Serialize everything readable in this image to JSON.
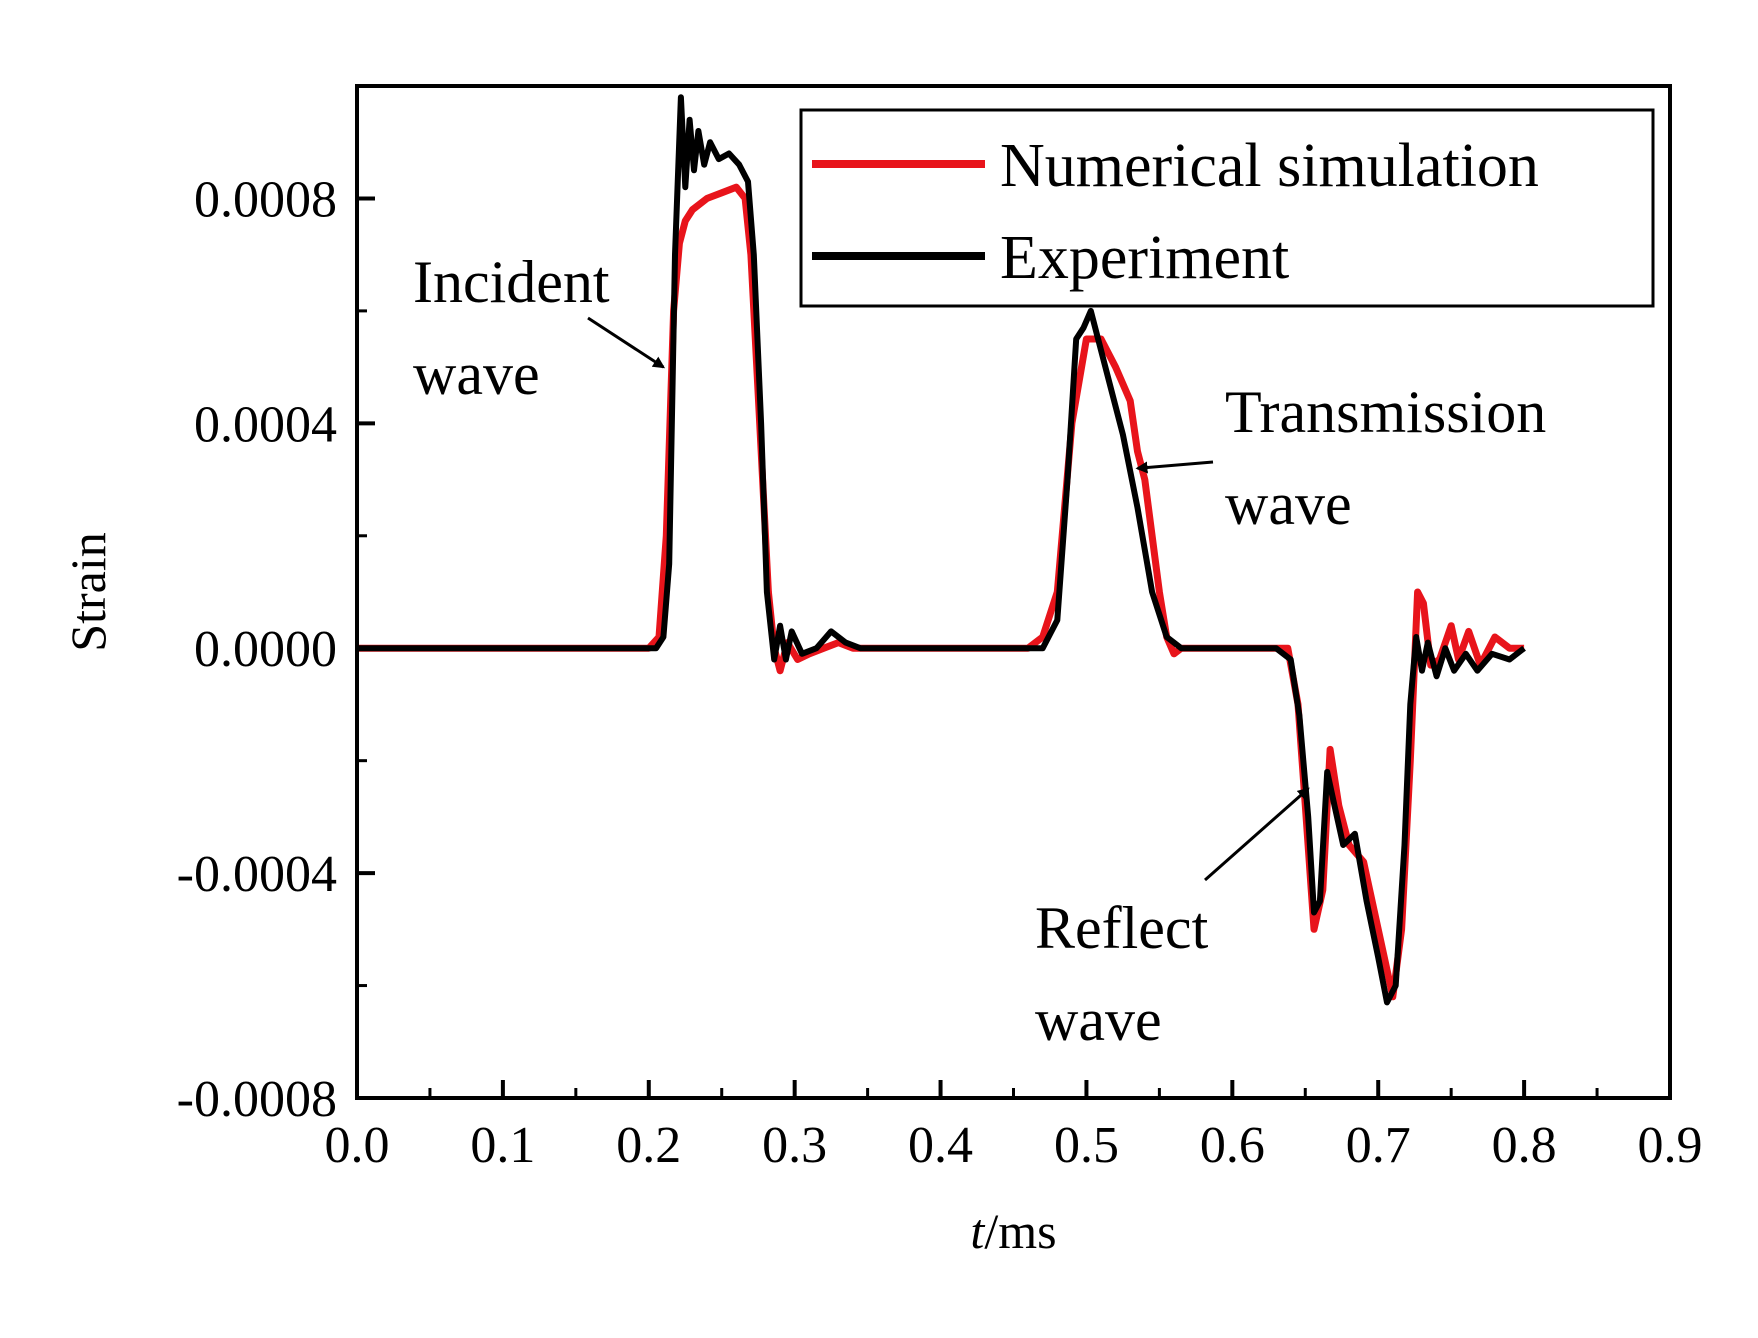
{
  "chart_data": {
    "type": "line",
    "xlabel": {
      "italic": "t",
      "rest": "/ms"
    },
    "ylabel": "Strain",
    "xlim": [
      0.0,
      0.9
    ],
    "ylim": [
      -0.0008,
      0.001
    ],
    "x_ticks": [
      0.0,
      0.1,
      0.2,
      0.3,
      0.4,
      0.5,
      0.6,
      0.7,
      0.8,
      0.9
    ],
    "x_tick_labels": [
      "0.0",
      "0.1",
      "0.2",
      "0.3",
      "0.4",
      "0.5",
      "0.6",
      "0.7",
      "0.8",
      "0.9"
    ],
    "y_ticks": [
      0.0008,
      0.0004,
      0.0,
      -0.0004,
      -0.0008
    ],
    "y_tick_labels": [
      "0.0008",
      "0.0004",
      "0.0000",
      "-0.0004",
      "-0.0008"
    ],
    "grid": false,
    "legend": {
      "placement": "top-right"
    },
    "series": [
      {
        "name": "Numerical simulation",
        "color": "#e8141b",
        "points": [
          [
            0.0,
            0.0
          ],
          [
            0.2,
            0.0
          ],
          [
            0.207,
            2e-05
          ],
          [
            0.212,
            0.0002
          ],
          [
            0.217,
            0.0006
          ],
          [
            0.221,
            0.00072
          ],
          [
            0.225,
            0.00076
          ],
          [
            0.23,
            0.00078
          ],
          [
            0.24,
            0.0008
          ],
          [
            0.25,
            0.00081
          ],
          [
            0.26,
            0.00082
          ],
          [
            0.266,
            0.0008
          ],
          [
            0.27,
            0.0007
          ],
          [
            0.276,
            0.0004
          ],
          [
            0.282,
            0.0001
          ],
          [
            0.286,
            0.0
          ],
          [
            0.29,
            -4e-05
          ],
          [
            0.295,
            1e-05
          ],
          [
            0.302,
            -2e-05
          ],
          [
            0.31,
            -1e-05
          ],
          [
            0.32,
            0.0
          ],
          [
            0.33,
            1e-05
          ],
          [
            0.34,
            0.0
          ],
          [
            0.35,
            0.0
          ],
          [
            0.46,
            0.0
          ],
          [
            0.47,
            2e-05
          ],
          [
            0.48,
            0.0001
          ],
          [
            0.49,
            0.0004
          ],
          [
            0.5,
            0.00055
          ],
          [
            0.51,
            0.00055
          ],
          [
            0.52,
            0.0005
          ],
          [
            0.53,
            0.00044
          ],
          [
            0.535,
            0.00035
          ],
          [
            0.54,
            0.0003
          ],
          [
            0.55,
            0.0001
          ],
          [
            0.555,
            2e-05
          ],
          [
            0.56,
            -1e-05
          ],
          [
            0.565,
            0.0
          ],
          [
            0.57,
            0.0
          ],
          [
            0.638,
            0.0
          ],
          [
            0.645,
            -0.0001
          ],
          [
            0.65,
            -0.00028
          ],
          [
            0.656,
            -0.0005
          ],
          [
            0.662,
            -0.00043
          ],
          [
            0.667,
            -0.00018
          ],
          [
            0.673,
            -0.00028
          ],
          [
            0.68,
            -0.00035
          ],
          [
            0.69,
            -0.00038
          ],
          [
            0.7,
            -0.0005
          ],
          [
            0.71,
            -0.00062
          ],
          [
            0.716,
            -0.0005
          ],
          [
            0.722,
            -0.0002
          ],
          [
            0.727,
            0.0001
          ],
          [
            0.731,
            8e-05
          ],
          [
            0.736,
            -3e-05
          ],
          [
            0.742,
            -2e-05
          ],
          [
            0.75,
            4e-05
          ],
          [
            0.755,
            -2e-05
          ],
          [
            0.762,
            3e-05
          ],
          [
            0.77,
            -3e-05
          ],
          [
            0.78,
            2e-05
          ],
          [
            0.79,
            0.0
          ],
          [
            0.8,
            0.0
          ]
        ]
      },
      {
        "name": "Experiment",
        "color": "#000000",
        "points": [
          [
            0.0,
            0.0
          ],
          [
            0.205,
            0.0
          ],
          [
            0.21,
            2e-05
          ],
          [
            0.214,
            0.00015
          ],
          [
            0.218,
            0.0007
          ],
          [
            0.222,
            0.00098
          ],
          [
            0.225,
            0.00082
          ],
          [
            0.228,
            0.00094
          ],
          [
            0.231,
            0.00085
          ],
          [
            0.234,
            0.00092
          ],
          [
            0.238,
            0.00086
          ],
          [
            0.242,
            0.0009
          ],
          [
            0.248,
            0.00087
          ],
          [
            0.255,
            0.00088
          ],
          [
            0.262,
            0.00086
          ],
          [
            0.268,
            0.00083
          ],
          [
            0.272,
            0.0007
          ],
          [
            0.277,
            0.0004
          ],
          [
            0.281,
            0.0001
          ],
          [
            0.286,
            -2e-05
          ],
          [
            0.29,
            4e-05
          ],
          [
            0.294,
            -2e-05
          ],
          [
            0.298,
            3e-05
          ],
          [
            0.305,
            -1e-05
          ],
          [
            0.315,
            0.0
          ],
          [
            0.325,
            3e-05
          ],
          [
            0.335,
            1e-05
          ],
          [
            0.345,
            0.0
          ],
          [
            0.47,
            0.0
          ],
          [
            0.48,
            5e-05
          ],
          [
            0.487,
            0.0003
          ],
          [
            0.493,
            0.00055
          ],
          [
            0.498,
            0.00057
          ],
          [
            0.503,
            0.0006
          ],
          [
            0.508,
            0.00055
          ],
          [
            0.515,
            0.00048
          ],
          [
            0.525,
            0.00038
          ],
          [
            0.535,
            0.00025
          ],
          [
            0.545,
            0.0001
          ],
          [
            0.555,
            2e-05
          ],
          [
            0.565,
            0.0
          ],
          [
            0.63,
            0.0
          ],
          [
            0.64,
            -2e-05
          ],
          [
            0.646,
            -0.00012
          ],
          [
            0.652,
            -0.0003
          ],
          [
            0.656,
            -0.00047
          ],
          [
            0.66,
            -0.00045
          ],
          [
            0.665,
            -0.00022
          ],
          [
            0.67,
            -0.00028
          ],
          [
            0.676,
            -0.00035
          ],
          [
            0.684,
            -0.00033
          ],
          [
            0.692,
            -0.00045
          ],
          [
            0.7,
            -0.00055
          ],
          [
            0.706,
            -0.00063
          ],
          [
            0.712,
            -0.0006
          ],
          [
            0.718,
            -0.00035
          ],
          [
            0.722,
            -0.0001
          ],
          [
            0.726,
            2e-05
          ],
          [
            0.73,
            -4e-05
          ],
          [
            0.734,
            1e-05
          ],
          [
            0.74,
            -5e-05
          ],
          [
            0.746,
            0.0
          ],
          [
            0.752,
            -4e-05
          ],
          [
            0.76,
            -1e-05
          ],
          [
            0.768,
            -4e-05
          ],
          [
            0.778,
            -1e-05
          ],
          [
            0.79,
            -2e-05
          ],
          [
            0.8,
            0.0
          ]
        ]
      }
    ],
    "annotations": [
      {
        "lines": [
          "Incident",
          "wave"
        ],
        "arrow_to": [
          0.21,
          0.0005
        ]
      },
      {
        "lines": [
          "Transmission",
          "wave"
        ],
        "arrow_to": [
          0.535,
          0.00032
        ]
      },
      {
        "lines": [
          "Reflect",
          "wave"
        ],
        "arrow_to": [
          0.652,
          -0.00025
        ]
      }
    ]
  }
}
